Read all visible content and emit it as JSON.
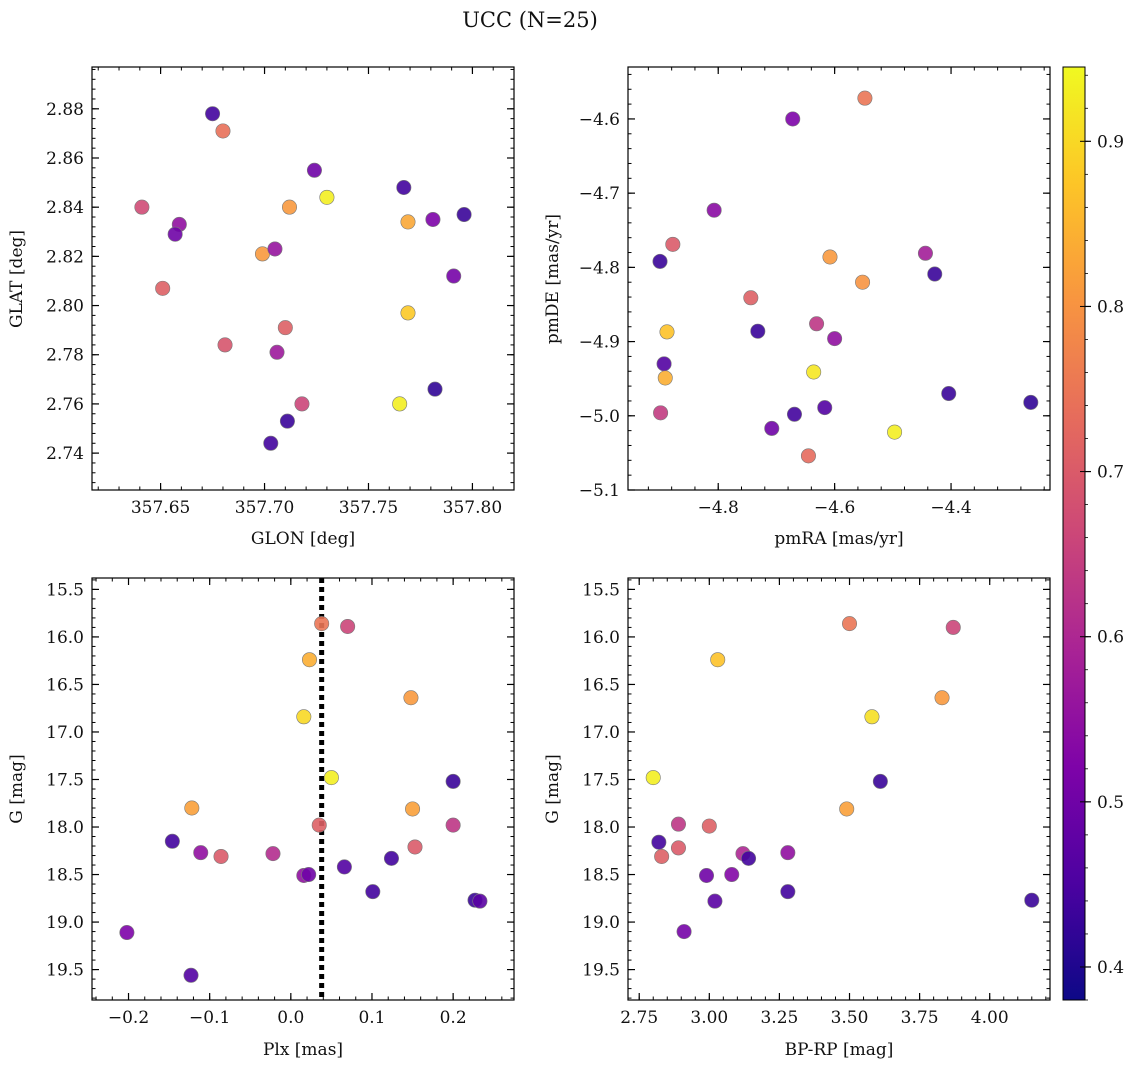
{
  "figure": {
    "title": "UCC (N=25)"
  },
  "colorbar": {
    "cmap": "plasma",
    "range": [
      0.38,
      0.945
    ],
    "ticks": [
      0.4,
      0.5,
      0.6,
      0.7,
      0.8,
      0.9
    ]
  },
  "chart_data": [
    {
      "type": "scatter",
      "xlabel": "GLON [deg]",
      "ylabel": "GLAT [deg]",
      "xlim": [
        357.617,
        357.82
      ],
      "ylim": [
        2.725,
        2.897
      ],
      "xticks": [
        357.65,
        357.7,
        357.75,
        357.8
      ],
      "yticks": [
        2.74,
        2.76,
        2.78,
        2.8,
        2.82,
        2.84,
        2.86,
        2.88
      ],
      "points": [
        {
          "x": 357.675,
          "y": 2.878,
          "c": 0.44
        },
        {
          "x": 357.68,
          "y": 2.871,
          "c": 0.74
        },
        {
          "x": 357.724,
          "y": 2.855,
          "c": 0.5
        },
        {
          "x": 357.767,
          "y": 2.848,
          "c": 0.44
        },
        {
          "x": 357.641,
          "y": 2.84,
          "c": 0.67
        },
        {
          "x": 357.712,
          "y": 2.84,
          "c": 0.81
        },
        {
          "x": 357.73,
          "y": 2.844,
          "c": 0.93
        },
        {
          "x": 357.769,
          "y": 2.834,
          "c": 0.83
        },
        {
          "x": 357.781,
          "y": 2.835,
          "c": 0.52
        },
        {
          "x": 357.796,
          "y": 2.837,
          "c": 0.43
        },
        {
          "x": 357.659,
          "y": 2.833,
          "c": 0.55
        },
        {
          "x": 357.657,
          "y": 2.829,
          "c": 0.5
        },
        {
          "x": 357.699,
          "y": 2.821,
          "c": 0.81
        },
        {
          "x": 357.705,
          "y": 2.823,
          "c": 0.56
        },
        {
          "x": 357.651,
          "y": 2.807,
          "c": 0.71
        },
        {
          "x": 357.791,
          "y": 2.812,
          "c": 0.51
        },
        {
          "x": 357.769,
          "y": 2.797,
          "c": 0.88
        },
        {
          "x": 357.71,
          "y": 2.791,
          "c": 0.71
        },
        {
          "x": 357.681,
          "y": 2.784,
          "c": 0.69
        },
        {
          "x": 357.706,
          "y": 2.781,
          "c": 0.57
        },
        {
          "x": 357.782,
          "y": 2.766,
          "c": 0.42
        },
        {
          "x": 357.765,
          "y": 2.76,
          "c": 0.93
        },
        {
          "x": 357.718,
          "y": 2.76,
          "c": 0.66
        },
        {
          "x": 357.711,
          "y": 2.753,
          "c": 0.43
        },
        {
          "x": 357.703,
          "y": 2.744,
          "c": 0.44
        }
      ]
    },
    {
      "type": "scatter",
      "xlabel": "pmRA [mas/yr]",
      "ylabel": "pmDE [mas/yr]",
      "xlim": [
        -4.955,
        -4.23
      ],
      "ylim": [
        -5.1,
        -4.53
      ],
      "xticks": [
        -4.8,
        -4.6,
        -4.4
      ],
      "yticks": [
        -4.6,
        -4.7,
        -4.8,
        -4.9,
        -5.0,
        -5.1
      ],
      "points": [
        {
          "x": -4.548,
          "y": -4.572,
          "c": 0.75
        },
        {
          "x": -4.672,
          "y": -4.6,
          "c": 0.52
        },
        {
          "x": -4.807,
          "y": -4.723,
          "c": 0.54
        },
        {
          "x": -4.9,
          "y": -4.792,
          "c": 0.43
        },
        {
          "x": -4.878,
          "y": -4.769,
          "c": 0.7
        },
        {
          "x": -4.608,
          "y": -4.786,
          "c": 0.81
        },
        {
          "x": -4.444,
          "y": -4.781,
          "c": 0.58
        },
        {
          "x": -4.428,
          "y": -4.809,
          "c": 0.43
        },
        {
          "x": -4.552,
          "y": -4.82,
          "c": 0.8
        },
        {
          "x": -4.744,
          "y": -4.841,
          "c": 0.71
        },
        {
          "x": -4.732,
          "y": -4.886,
          "c": 0.43
        },
        {
          "x": -4.888,
          "y": -4.887,
          "c": 0.87
        },
        {
          "x": -4.631,
          "y": -4.876,
          "c": 0.63
        },
        {
          "x": -4.6,
          "y": -4.896,
          "c": 0.55
        },
        {
          "x": -4.893,
          "y": -4.93,
          "c": 0.46
        },
        {
          "x": -4.891,
          "y": -4.949,
          "c": 0.84
        },
        {
          "x": -4.636,
          "y": -4.941,
          "c": 0.92
        },
        {
          "x": -4.404,
          "y": -4.97,
          "c": 0.43
        },
        {
          "x": -4.263,
          "y": -4.982,
          "c": 0.42
        },
        {
          "x": -4.899,
          "y": -4.996,
          "c": 0.64
        },
        {
          "x": -4.669,
          "y": -4.998,
          "c": 0.44
        },
        {
          "x": -4.617,
          "y": -4.989,
          "c": 0.46
        },
        {
          "x": -4.708,
          "y": -5.017,
          "c": 0.5
        },
        {
          "x": -4.497,
          "y": -5.022,
          "c": 0.93
        },
        {
          "x": -4.645,
          "y": -5.054,
          "c": 0.73
        }
      ]
    },
    {
      "type": "scatter",
      "xlabel": "Plx [mas]",
      "ylabel": "G [mag]",
      "xlim": [
        -0.245,
        0.275
      ],
      "ylim": [
        19.82,
        15.38
      ],
      "xticks": [
        -0.2,
        -0.1,
        0.0,
        0.1,
        0.2
      ],
      "yticks": [
        15.5,
        16.0,
        16.5,
        17.0,
        17.5,
        18.0,
        18.5,
        19.0,
        19.5
      ],
      "vline": 0.038,
      "points": [
        {
          "x": 0.038,
          "y": 15.86,
          "c": 0.75
        },
        {
          "x": 0.07,
          "y": 15.89,
          "c": 0.66
        },
        {
          "x": 0.023,
          "y": 16.24,
          "c": 0.84
        },
        {
          "x": 0.148,
          "y": 16.64,
          "c": 0.81
        },
        {
          "x": 0.016,
          "y": 16.84,
          "c": 0.9
        },
        {
          "x": 0.05,
          "y": 17.48,
          "c": 0.93
        },
        {
          "x": 0.2,
          "y": 17.52,
          "c": 0.43
        },
        {
          "x": -0.122,
          "y": 17.8,
          "c": 0.82
        },
        {
          "x": 0.15,
          "y": 17.81,
          "c": 0.82
        },
        {
          "x": 0.2,
          "y": 17.98,
          "c": 0.63
        },
        {
          "x": 0.035,
          "y": 17.98,
          "c": 0.71
        },
        {
          "x": -0.146,
          "y": 18.15,
          "c": 0.44
        },
        {
          "x": -0.111,
          "y": 18.27,
          "c": 0.55
        },
        {
          "x": 0.153,
          "y": 18.21,
          "c": 0.7
        },
        {
          "x": -0.086,
          "y": 18.31,
          "c": 0.7
        },
        {
          "x": -0.022,
          "y": 18.28,
          "c": 0.61
        },
        {
          "x": 0.124,
          "y": 18.33,
          "c": 0.44
        },
        {
          "x": 0.066,
          "y": 18.42,
          "c": 0.46
        },
        {
          "x": 0.016,
          "y": 18.51,
          "c": 0.55
        },
        {
          "x": 0.022,
          "y": 18.5,
          "c": 0.5
        },
        {
          "x": 0.101,
          "y": 18.68,
          "c": 0.44
        },
        {
          "x": 0.227,
          "y": 18.77,
          "c": 0.43
        },
        {
          "x": 0.233,
          "y": 18.78,
          "c": 0.47
        },
        {
          "x": -0.202,
          "y": 19.11,
          "c": 0.52
        },
        {
          "x": -0.123,
          "y": 19.56,
          "c": 0.46
        }
      ]
    },
    {
      "type": "scatter",
      "xlabel": "BP-RP [mag]",
      "ylabel": "G [mag]",
      "xlim": [
        2.71,
        4.215
      ],
      "ylim": [
        19.82,
        15.38
      ],
      "xticks": [
        2.75,
        3.0,
        3.25,
        3.5,
        3.75,
        4.0
      ],
      "yticks": [
        15.5,
        16.0,
        16.5,
        17.0,
        17.5,
        18.0,
        18.5,
        19.0,
        19.5
      ],
      "points": [
        {
          "x": 3.5,
          "y": 15.86,
          "c": 0.75
        },
        {
          "x": 3.87,
          "y": 15.9,
          "c": 0.66
        },
        {
          "x": 3.03,
          "y": 16.24,
          "c": 0.87
        },
        {
          "x": 3.83,
          "y": 16.64,
          "c": 0.81
        },
        {
          "x": 3.58,
          "y": 16.84,
          "c": 0.91
        },
        {
          "x": 2.8,
          "y": 17.48,
          "c": 0.93
        },
        {
          "x": 3.61,
          "y": 17.52,
          "c": 0.43
        },
        {
          "x": 3.49,
          "y": 17.81,
          "c": 0.82
        },
        {
          "x": 2.89,
          "y": 17.97,
          "c": 0.63
        },
        {
          "x": 3.0,
          "y": 17.99,
          "c": 0.71
        },
        {
          "x": 2.82,
          "y": 18.16,
          "c": 0.44
        },
        {
          "x": 2.89,
          "y": 18.22,
          "c": 0.7
        },
        {
          "x": 2.83,
          "y": 18.31,
          "c": 0.71
        },
        {
          "x": 3.12,
          "y": 18.28,
          "c": 0.6
        },
        {
          "x": 3.14,
          "y": 18.33,
          "c": 0.44
        },
        {
          "x": 3.28,
          "y": 18.27,
          "c": 0.55
        },
        {
          "x": 2.99,
          "y": 18.51,
          "c": 0.5
        },
        {
          "x": 3.08,
          "y": 18.5,
          "c": 0.53
        },
        {
          "x": 3.28,
          "y": 18.68,
          "c": 0.44
        },
        {
          "x": 3.02,
          "y": 18.78,
          "c": 0.47
        },
        {
          "x": 2.91,
          "y": 19.1,
          "c": 0.51
        },
        {
          "x": 4.15,
          "y": 18.77,
          "c": 0.43
        }
      ]
    }
  ]
}
